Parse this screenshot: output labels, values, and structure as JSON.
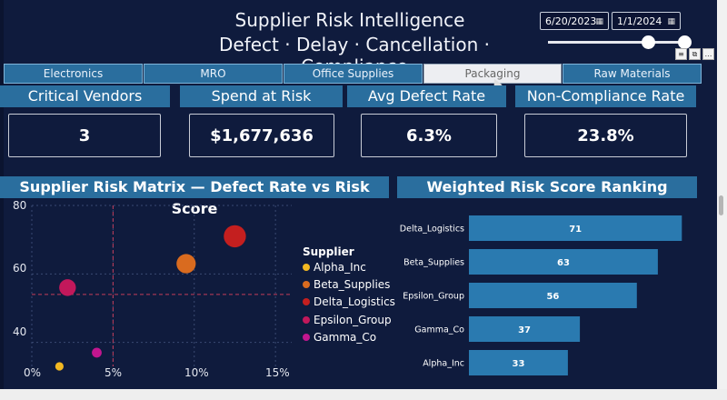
{
  "header": {
    "title": "Supplier Risk Intelligence",
    "subtitle": "Defect · Delay · Cancellation · Compliance",
    "date_start": "6/20/2023",
    "date_end": "1/1/2024"
  },
  "tabs": [
    {
      "label": "Electronics"
    },
    {
      "label": "MRO"
    },
    {
      "label": "Office Supplies"
    },
    {
      "label": "Packaging"
    },
    {
      "label": "Raw Materials"
    }
  ],
  "active_tab": "Packaging",
  "kpis": [
    {
      "label": "Critical Vendors",
      "value": "3"
    },
    {
      "label": "Spend at Risk",
      "value": "$1,677,636"
    },
    {
      "label": "Avg Defect Rate",
      "value": "6.3%"
    },
    {
      "label": "Non-Compliance Rate",
      "value": "23.8%"
    }
  ],
  "scatter": {
    "title": "Supplier Risk Matrix — Defect Rate vs Risk Score",
    "legend_title": "Supplier"
  },
  "ranking": {
    "title": "Weighted Risk Score Ranking"
  },
  "chart_data": [
    {
      "type": "scatter",
      "title": "Supplier Risk Matrix — Defect Rate vs Risk Score",
      "x_ticks": [
        "0%",
        "5%",
        "10%",
        "15%"
      ],
      "y_ticks": [
        "80",
        "60",
        "40"
      ],
      "xlim": [
        0,
        0.16
      ],
      "ylim": [
        33,
        80
      ],
      "reference_lines": {
        "x": 0.05,
        "y": 54
      },
      "series": [
        {
          "name": "Alpha_Inc",
          "color": "#f2b822",
          "points": [
            {
              "x": 0.017,
              "y": 33,
              "size": 33
            }
          ]
        },
        {
          "name": "Beta_Supplies",
          "color": "#d96b1f",
          "points": [
            {
              "x": 0.095,
              "y": 63,
              "size": 63
            }
          ]
        },
        {
          "name": "Delta_Logistics",
          "color": "#c41f1f",
          "points": [
            {
              "x": 0.125,
              "y": 71,
              "size": 71
            }
          ]
        },
        {
          "name": "Epsilon_Group",
          "color": "#c2185b",
          "points": [
            {
              "x": 0.022,
              "y": 56,
              "size": 56
            }
          ]
        },
        {
          "name": "Gamma_Co",
          "color": "#c2168f",
          "points": [
            {
              "x": 0.04,
              "y": 37,
              "size": 37
            }
          ]
        }
      ]
    },
    {
      "type": "bar",
      "title": "Weighted Risk Score Ranking",
      "categories": [
        "Delta_Logistics",
        "Beta_Supplies",
        "Epsilon_Group",
        "Gamma_Co",
        "Alpha_Inc"
      ],
      "values": [
        71,
        63,
        56,
        37,
        33
      ],
      "xlim": [
        0,
        80
      ],
      "color": "#2a7ab0"
    }
  ]
}
